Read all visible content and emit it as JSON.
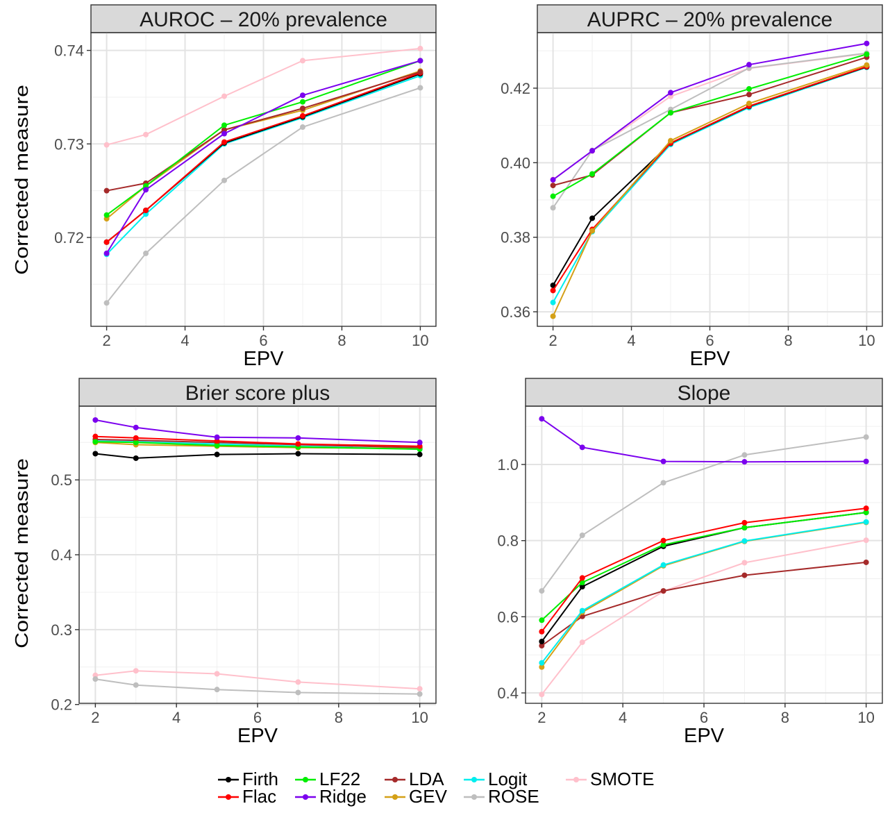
{
  "y_axis_title": "Corrected measure",
  "x_axis_title": "EPV",
  "legend": {
    "entries": [
      {
        "name": "Firth",
        "color": "#000000"
      },
      {
        "name": "LF22",
        "color": "#00ee00"
      },
      {
        "name": "LDA",
        "color": "#a52a2a"
      },
      {
        "name": "Logit",
        "color": "#00eeee"
      },
      {
        "name": "SMOTE",
        "color": "#ffc0cb"
      },
      {
        "name": "Flac",
        "color": "#ff0000"
      },
      {
        "name": "Ridge",
        "color": "#7b00ee"
      },
      {
        "name": "GEV",
        "color": "#d4a017"
      },
      {
        "name": "ROSE",
        "color": "#bebebe"
      }
    ]
  },
  "chart_data": [
    {
      "type": "line",
      "title": "AUROC – 20% prevalence",
      "xlabel": "EPV",
      "ylabel": "Corrected measure",
      "x": [
        2,
        3,
        5,
        7,
        10
      ],
      "xlim": [
        1.6,
        10.4
      ],
      "ylim": [
        0.7105,
        0.7419
      ],
      "x_ticks": [
        2,
        4,
        6,
        8,
        10
      ],
      "y_ticks": [
        0.72,
        0.73,
        0.74
      ],
      "y_tick_labels": [
        "0.72",
        "0.73",
        "0.74"
      ],
      "series": [
        {
          "name": "SMOTE",
          "values": [
            0.7299,
            0.731,
            0.7351,
            0.7389,
            0.7402
          ]
        },
        {
          "name": "ROSE",
          "values": [
            0.713,
            0.7183,
            0.7261,
            0.7318,
            0.736
          ]
        },
        {
          "name": "Logit",
          "values": [
            0.7182,
            0.7225,
            0.73,
            0.7328,
            0.7373
          ]
        },
        {
          "name": "Firth",
          "values": [
            0.7195,
            0.7229,
            0.7301,
            0.7329,
            0.7375
          ]
        },
        {
          "name": "Flac",
          "values": [
            0.7195,
            0.7229,
            0.7302,
            0.733,
            0.7376
          ]
        },
        {
          "name": "GEV",
          "values": [
            0.722,
            0.7255,
            0.7315,
            0.7336,
            0.7378
          ]
        },
        {
          "name": "LDA",
          "values": [
            0.725,
            0.7258,
            0.7315,
            0.7338,
            0.7377
          ]
        },
        {
          "name": "LF22",
          "values": [
            0.7224,
            0.7255,
            0.732,
            0.7345,
            0.7389
          ]
        },
        {
          "name": "Ridge",
          "values": [
            0.7183,
            0.7251,
            0.7311,
            0.7352,
            0.7389
          ]
        }
      ]
    },
    {
      "type": "line",
      "title": "AUPRC – 20% prevalence",
      "xlabel": "EPV",
      "ylabel": "",
      "x": [
        2,
        3,
        5,
        7,
        10
      ],
      "xlim": [
        1.6,
        10.4
      ],
      "ylim": [
        0.3561,
        0.4349
      ],
      "x_ticks": [
        2,
        4,
        6,
        8,
        10
      ],
      "y_ticks": [
        0.36,
        0.38,
        0.4,
        0.42
      ],
      "y_tick_labels": [
        "0.36",
        "0.38",
        "0.40",
        "0.42"
      ],
      "series": [
        {
          "name": "SMOTE",
          "values": [
            0.3955,
            0.4031,
            0.4178,
            0.4253,
            0.4293
          ]
        },
        {
          "name": "ROSE",
          "values": [
            0.3879,
            0.4033,
            0.4143,
            0.4254,
            0.4294
          ]
        },
        {
          "name": "Logit",
          "values": [
            0.3625,
            0.3815,
            0.4049,
            0.4148,
            0.4256
          ]
        },
        {
          "name": "Firth",
          "values": [
            0.3671,
            0.3851,
            0.4052,
            0.4151,
            0.4257
          ]
        },
        {
          "name": "Flac",
          "values": [
            0.3657,
            0.3821,
            0.4053,
            0.4152,
            0.4258
          ]
        },
        {
          "name": "GEV",
          "values": [
            0.3588,
            0.3817,
            0.4059,
            0.4159,
            0.4262
          ]
        },
        {
          "name": "LDA",
          "values": [
            0.3939,
            0.3967,
            0.4134,
            0.4183,
            0.4283
          ]
        },
        {
          "name": "LF22",
          "values": [
            0.391,
            0.397,
            0.4134,
            0.4198,
            0.4291
          ]
        },
        {
          "name": "Ridge",
          "values": [
            0.3954,
            0.4032,
            0.4188,
            0.4263,
            0.432
          ]
        }
      ]
    },
    {
      "type": "line",
      "title": "Brier score plus",
      "xlabel": "EPV",
      "ylabel": "Corrected measure",
      "x": [
        2,
        3,
        5,
        7,
        10
      ],
      "xlim": [
        1.6,
        10.4
      ],
      "ylim": [
        0.2016,
        0.5985
      ],
      "x_ticks": [
        2,
        4,
        6,
        8,
        10
      ],
      "y_ticks": [
        0.2,
        0.3,
        0.4,
        0.5
      ],
      "y_tick_labels": [
        "0.2",
        "0.3",
        "0.4",
        "0.5"
      ],
      "series": [
        {
          "name": "SMOTE",
          "values": [
            0.239,
            0.245,
            0.241,
            0.23,
            0.221
          ]
        },
        {
          "name": "ROSE",
          "values": [
            0.234,
            0.226,
            0.22,
            0.216,
            0.214
          ]
        },
        {
          "name": "Logit",
          "values": [
            0.552,
            0.551,
            0.548,
            0.545,
            0.541
          ]
        },
        {
          "name": "GEV",
          "values": [
            0.55,
            0.547,
            0.545,
            0.543,
            0.542
          ]
        },
        {
          "name": "LDA",
          "values": [
            0.554,
            0.553,
            0.55,
            0.547,
            0.543
          ]
        },
        {
          "name": "LF22",
          "values": [
            0.551,
            0.55,
            0.546,
            0.544,
            0.541
          ]
        },
        {
          "name": "Flac",
          "values": [
            0.558,
            0.556,
            0.552,
            0.548,
            0.545
          ]
        },
        {
          "name": "Firth",
          "values": [
            0.535,
            0.529,
            0.534,
            0.535,
            0.534
          ]
        },
        {
          "name": "Ridge",
          "values": [
            0.58,
            0.57,
            0.557,
            0.556,
            0.55
          ]
        }
      ]
    },
    {
      "type": "line",
      "title": "Slope",
      "xlabel": "EPV",
      "ylabel": "",
      "x": [
        2,
        3,
        5,
        7,
        10
      ],
      "xlim": [
        1.6,
        10.4
      ],
      "ylim": [
        0.3727,
        1.1532
      ],
      "x_ticks": [
        2,
        4,
        6,
        8,
        10
      ],
      "y_ticks": [
        0.4,
        0.6,
        0.8,
        1.0
      ],
      "y_tick_labels": [
        "0.4",
        "0.6",
        "0.8",
        "1.0"
      ],
      "series": [
        {
          "name": "SMOTE",
          "values": [
            0.396,
            0.533,
            0.667,
            0.742,
            0.801
          ]
        },
        {
          "name": "ROSE",
          "values": [
            0.668,
            0.814,
            0.952,
            1.025,
            1.072
          ]
        },
        {
          "name": "LDA",
          "values": [
            0.524,
            0.601,
            0.668,
            0.709,
            0.743
          ]
        },
        {
          "name": "GEV",
          "values": [
            0.468,
            0.612,
            0.734,
            0.798,
            0.848
          ]
        },
        {
          "name": "Logit",
          "values": [
            0.479,
            0.616,
            0.736,
            0.799,
            0.849
          ]
        },
        {
          "name": "Firth",
          "values": [
            0.535,
            0.679,
            0.785,
            0.834,
            0.874
          ]
        },
        {
          "name": "LF22",
          "values": [
            0.591,
            0.69,
            0.789,
            0.834,
            0.874
          ]
        },
        {
          "name": "Flac",
          "values": [
            0.561,
            0.702,
            0.8,
            0.847,
            0.885
          ]
        },
        {
          "name": "Ridge",
          "values": [
            1.12,
            1.045,
            1.008,
            1.007,
            1.008
          ]
        }
      ]
    }
  ]
}
